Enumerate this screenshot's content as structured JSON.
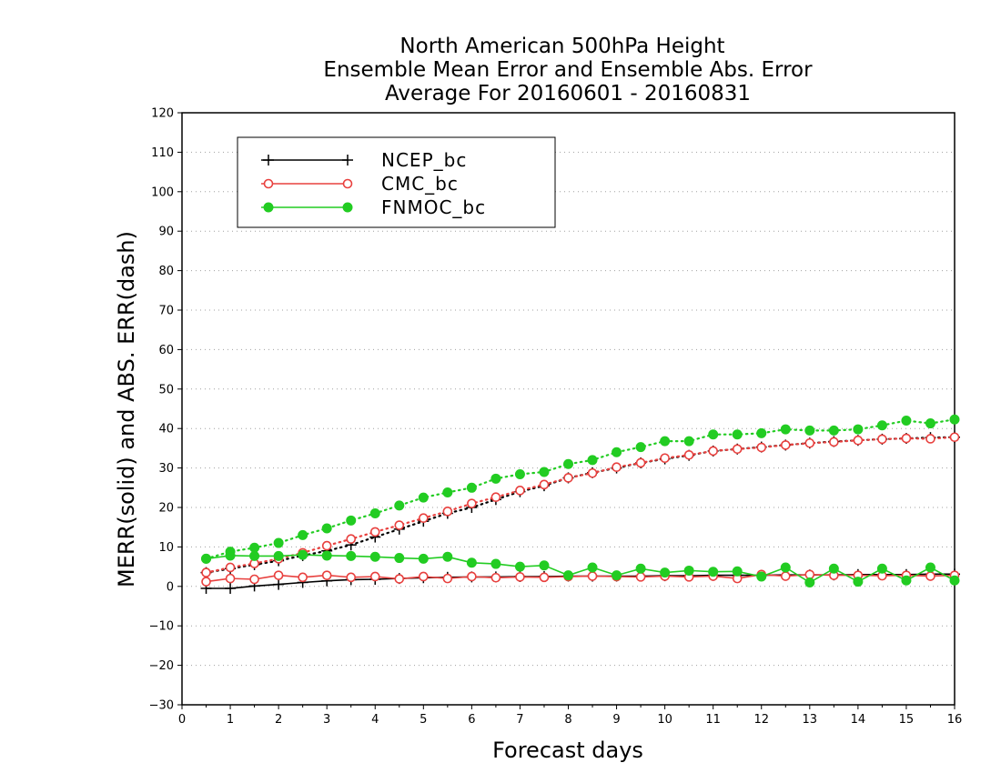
{
  "chart_data": {
    "type": "line",
    "title": [
      "North American 500hPa Height",
      "Ensemble Mean Error and Ensemble Abs. Error",
      "Average For 20160601 - 20160831"
    ],
    "xlabel": "Forecast days",
    "ylabel": "MERR(solid) and ABS. ERR(dash)",
    "xlim": [
      0,
      16
    ],
    "ylim": [
      -30,
      120
    ],
    "xticks": [
      0,
      1,
      2,
      3,
      4,
      5,
      6,
      7,
      8,
      9,
      10,
      11,
      12,
      13,
      14,
      15,
      16
    ],
    "yticks": [
      -30,
      -20,
      -10,
      0,
      10,
      20,
      30,
      40,
      50,
      60,
      70,
      80,
      90,
      100,
      110,
      120
    ],
    "grid": "horizontal dotted",
    "legend_position": "top-left",
    "x": [
      0.5,
      1,
      1.5,
      2,
      2.5,
      3,
      3.5,
      4,
      4.5,
      5,
      5.5,
      6,
      6.5,
      7,
      7.5,
      8,
      8.5,
      9,
      9.5,
      10,
      10.5,
      11,
      11.5,
      12,
      12.5,
      13,
      13.5,
      14,
      14.5,
      15,
      15.5,
      16
    ],
    "series": [
      {
        "name": "NCEP_bc",
        "color": "#000000",
        "marker": "plus",
        "merr": [
          -0.5,
          -0.5,
          0.1,
          0.5,
          1.0,
          1.4,
          1.7,
          1.8,
          2.0,
          2.2,
          2.3,
          2.4,
          2.4,
          2.5,
          2.5,
          2.6,
          2.6,
          2.6,
          2.6,
          2.7,
          2.7,
          2.8,
          2.8,
          2.8,
          2.9,
          2.9,
          2.9,
          3.0,
          3.0,
          3.0,
          3.1,
          3.1
        ],
        "abs_err": [
          3.5,
          4.5,
          5.5,
          6.5,
          7.8,
          9.0,
          10.5,
          12.5,
          14.5,
          16.5,
          18.5,
          20.0,
          22.0,
          24.0,
          25.5,
          27.5,
          28.8,
          30.0,
          31.3,
          32.3,
          33.2,
          34.3,
          34.8,
          35.3,
          35.8,
          36.3,
          36.7,
          37.0,
          37.3,
          37.5,
          37.7,
          37.8
        ]
      },
      {
        "name": "CMC_bc",
        "color": "#e8403e",
        "marker": "open-circle",
        "merr": [
          1.2,
          2.0,
          1.8,
          2.8,
          2.3,
          2.8,
          2.3,
          2.5,
          1.9,
          2.5,
          2.0,
          2.5,
          2.2,
          2.4,
          2.3,
          2.5,
          2.6,
          2.5,
          2.4,
          2.6,
          2.4,
          2.6,
          2.0,
          3.0,
          2.6,
          3.0,
          2.8,
          2.8,
          2.7,
          2.8,
          2.6,
          2.8
        ],
        "abs_err": [
          3.5,
          4.8,
          5.8,
          7.0,
          8.5,
          10.3,
          12.0,
          13.8,
          15.5,
          17.3,
          19.0,
          21.0,
          22.6,
          24.3,
          25.8,
          27.5,
          28.7,
          30.2,
          31.3,
          32.5,
          33.3,
          34.3,
          34.8,
          35.2,
          35.8,
          36.3,
          36.6,
          37.0,
          37.3,
          37.5,
          37.4,
          37.8
        ]
      },
      {
        "name": "FNMOC_bc",
        "color": "#22cc22",
        "marker": "filled-circle",
        "merr": [
          7.0,
          7.8,
          7.7,
          7.7,
          8.0,
          7.8,
          7.7,
          7.5,
          7.2,
          7.0,
          7.5,
          6.0,
          5.7,
          5.0,
          5.3,
          2.8,
          4.8,
          2.8,
          4.5,
          3.5,
          4.0,
          3.7,
          3.8,
          2.5,
          4.8,
          1.0,
          4.5,
          1.2,
          4.5,
          1.5,
          4.8,
          1.5
        ],
        "abs_err": [
          7.0,
          8.8,
          9.8,
          11.0,
          13.0,
          14.7,
          16.7,
          18.5,
          20.5,
          22.5,
          23.8,
          25.0,
          27.3,
          28.4,
          29.0,
          31.0,
          32.0,
          34.0,
          35.3,
          36.8,
          36.8,
          38.5,
          38.5,
          38.8,
          39.8,
          39.5,
          39.5,
          39.8,
          40.8,
          42.0,
          41.3,
          42.3
        ]
      }
    ]
  }
}
